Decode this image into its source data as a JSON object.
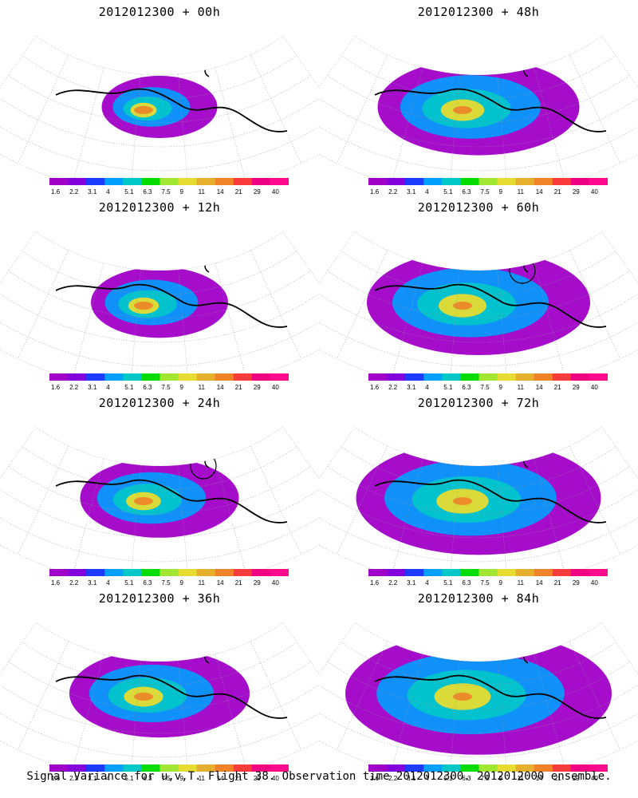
{
  "panels": [
    {
      "title": "2012012300 + 00h",
      "level": 0,
      "circle": false
    },
    {
      "title": "2012012300 + 48h",
      "level": 4,
      "circle": false
    },
    {
      "title": "2012012300 + 12h",
      "level": 1,
      "circle": false
    },
    {
      "title": "2012012300 + 60h",
      "level": 5,
      "circle": true
    },
    {
      "title": "2012012300 + 24h",
      "level": 2,
      "circle": true
    },
    {
      "title": "2012012300 + 72h",
      "level": 6,
      "circle": false
    },
    {
      "title": "2012012300 + 36h",
      "level": 3,
      "circle": false
    },
    {
      "title": "2012012300 + 84h",
      "level": 7,
      "circle": false
    }
  ],
  "colorbar": {
    "labels": [
      "1.6",
      "2.2",
      "3.1",
      "4",
      "5.1",
      "6.3",
      "7.5",
      "9",
      "11",
      "14",
      "21",
      "29",
      "40"
    ],
    "colors": [
      "#a000c8",
      "#8200dc",
      "#1e3cff",
      "#00a0ff",
      "#00c8c8",
      "#00dc00",
      "#a0e632",
      "#e6dc32",
      "#e6af2d",
      "#f08228",
      "#fa3c3c",
      "#f00082",
      "#ff0a8c"
    ]
  },
  "footer": "Signal Variance for u,v,T. Flight 38. Observation time 2012012300. 2012012000 ensemble."
}
